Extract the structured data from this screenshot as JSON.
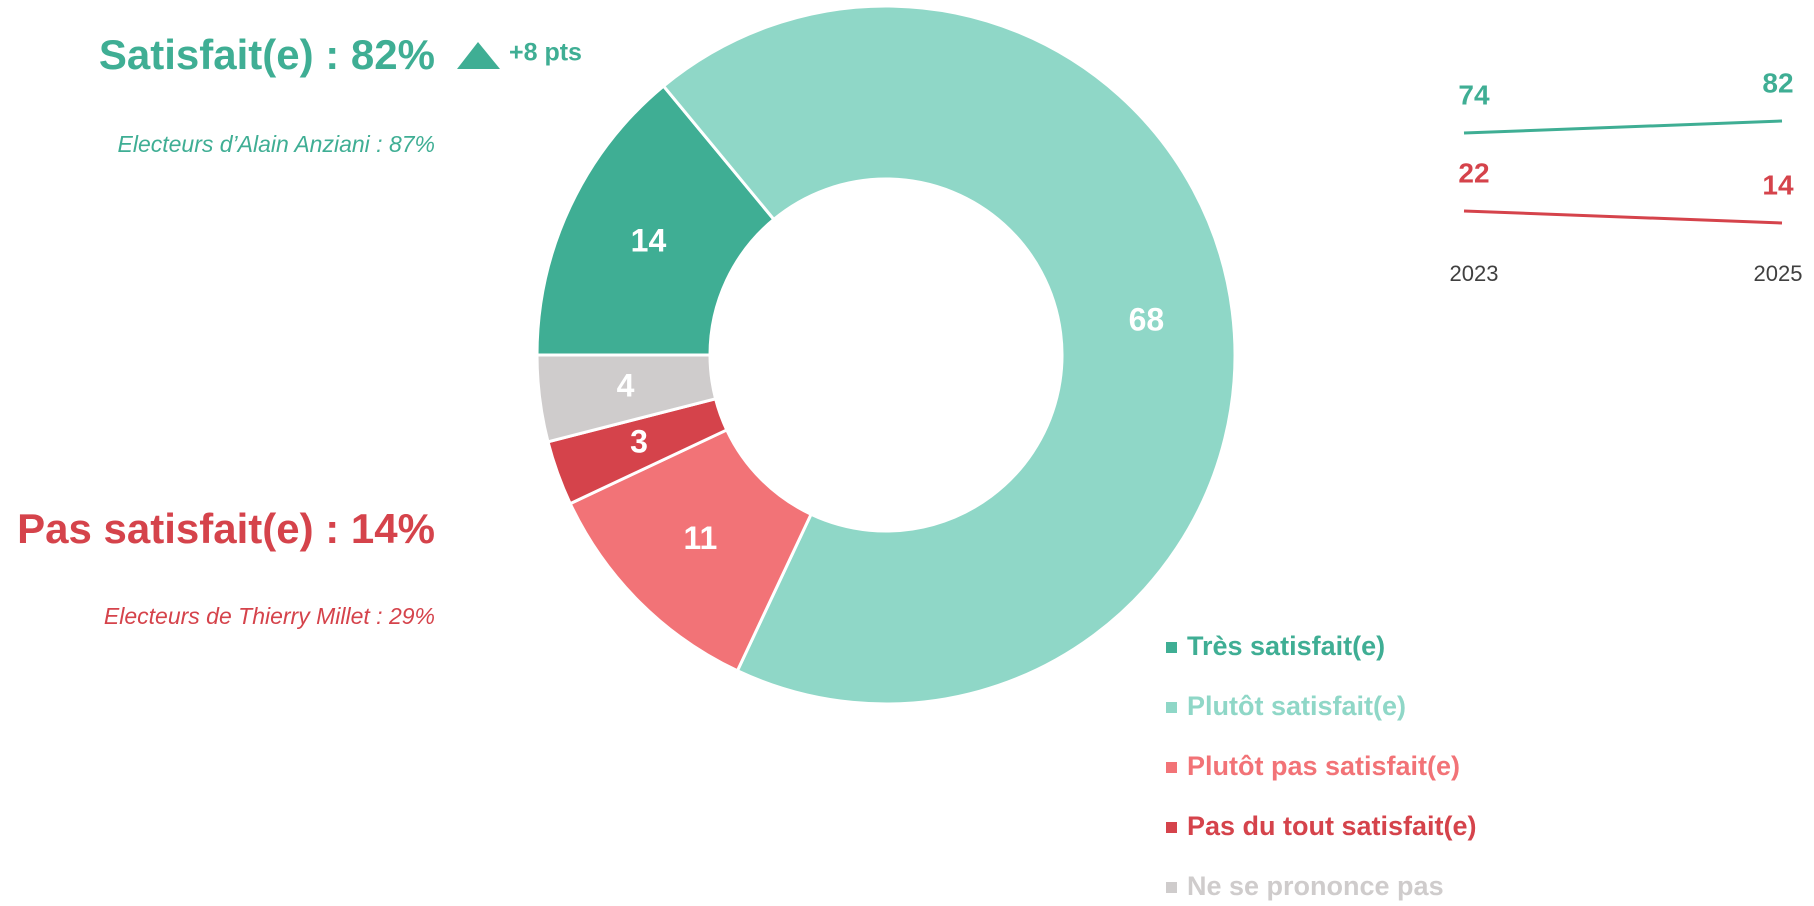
{
  "chart_data": [
    {
      "type": "donut",
      "categories": [
        "Très satisfait(e)",
        "Plutôt satisfait(e)",
        "Plutôt pas satisfait(e)",
        "Pas du tout satisfait(e)",
        "Ne se prononce pas"
      ],
      "values": [
        14,
        68,
        11,
        3,
        4
      ],
      "colors": [
        "#3fae94",
        "#8fd7c7",
        "#f27377",
        "#d5434b",
        "#cfcccc"
      ],
      "annotations": [
        {
          "text": "Satisfait(e) : 82%",
          "delta": "+8 pts",
          "note": "Electeurs d’Alain Anziani : 87%",
          "color": "#3fae94"
        },
        {
          "text": "Pas satisfait(e) : 14%",
          "note": "Electeurs de Thierry Millet : 29%",
          "color": "#d5434b"
        }
      ],
      "legend": "bottom-right"
    },
    {
      "type": "line",
      "categories": [
        "2023",
        "2025"
      ],
      "series": [
        {
          "color": "#3fae94",
          "values": [
            74,
            82
          ]
        },
        {
          "color": "#d5434b",
          "values": [
            22,
            14
          ]
        }
      ],
      "ylim": [
        0,
        100
      ]
    }
  ]
}
